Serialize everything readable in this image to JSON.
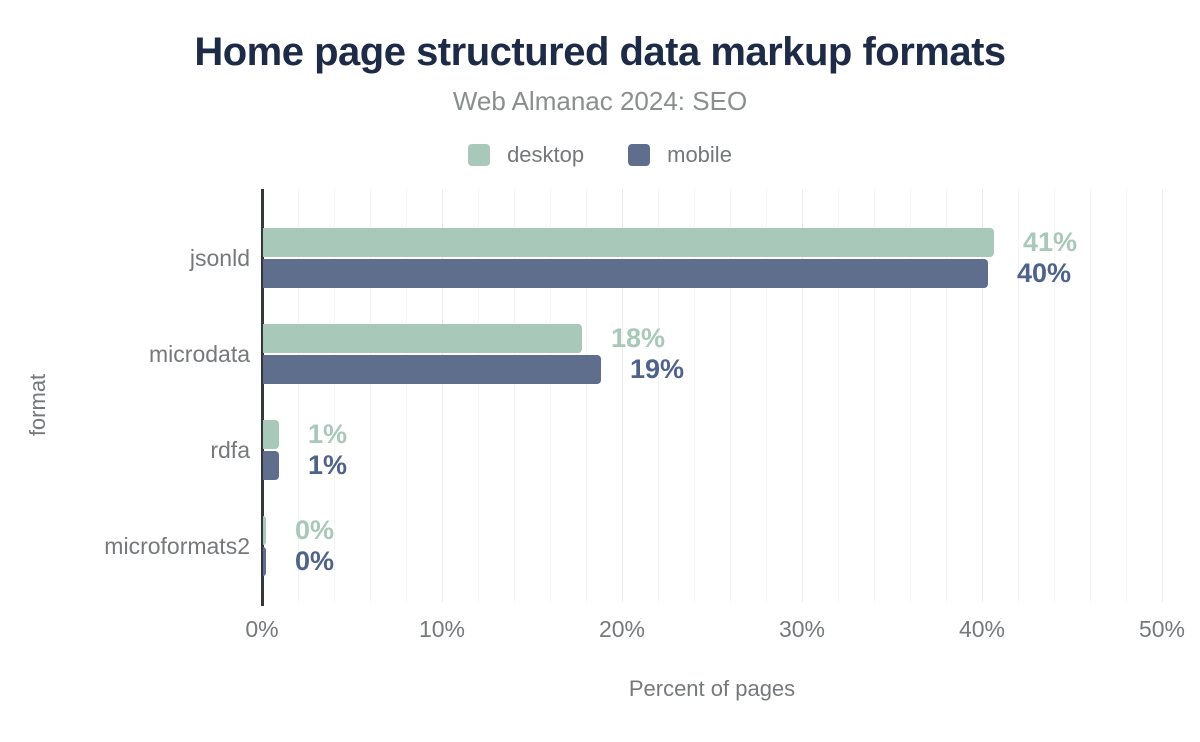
{
  "header": {
    "title": "Home page structured data markup formats",
    "subtitle": "Web Almanac 2024: SEO"
  },
  "legend": {
    "items": [
      {
        "label": "desktop",
        "color": "#a8c8b9"
      },
      {
        "label": "mobile",
        "color": "#5e6e8c"
      }
    ]
  },
  "chart_data": {
    "type": "bar",
    "orientation": "horizontal",
    "title": "Home page structured data markup formats",
    "subtitle": "Web Almanac 2024: SEO",
    "categories": [
      "jsonld",
      "microdata",
      "rdfa",
      "microformats2"
    ],
    "series": [
      {
        "name": "desktop",
        "color": "#a8c8b9",
        "label_color": "#a8c8b9",
        "values": [
          41,
          18,
          1,
          0
        ],
        "value_labels": [
          "41%",
          "18%",
          "1%",
          "0%"
        ],
        "bar_lengths_pct": [
          40.6,
          17.7,
          0.9,
          0.15
        ]
      },
      {
        "name": "mobile",
        "color": "#5e6e8c",
        "label_color": "#4f638a",
        "values": [
          40,
          19,
          1,
          0
        ],
        "value_labels": [
          "40%",
          "19%",
          "1%",
          "0%"
        ],
        "bar_lengths_pct": [
          40.3,
          18.8,
          0.9,
          0.15
        ]
      }
    ],
    "xlabel": "Percent of pages",
    "ylabel": "format",
    "xlim": [
      0,
      50
    ],
    "xticks": [
      0,
      10,
      20,
      30,
      40,
      50
    ],
    "xtick_labels": [
      "0%",
      "10%",
      "20%",
      "30%",
      "40%",
      "50%"
    ],
    "grid": {
      "minor_step_pct": 2,
      "major_step_pct": 10,
      "minor_color": "#f5f5f5",
      "major_color": "#ececec"
    },
    "axis_color": "#34373c",
    "text_color": "#75797b",
    "title_color": "#1e2b47",
    "subtitle_color": "#8a8e8e",
    "background": "#ffffff"
  }
}
